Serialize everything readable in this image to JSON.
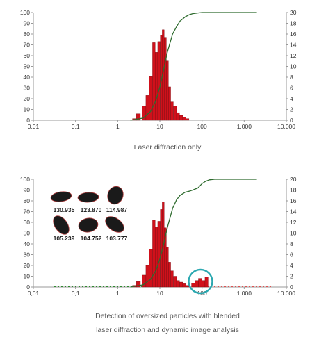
{
  "colors": {
    "bar": "#d0111b",
    "bar_edge": "#7a0a10",
    "curve": "#2e6b2e",
    "axis": "#999999",
    "circle": "#2aa8b0"
  },
  "captions": {
    "top": "Laser diffraction only",
    "bottom_line1": "Detection of oversized particles with blended",
    "bottom_line2": "laser diffraction and dynamic image analysis"
  },
  "chart_data": [
    {
      "type": "bar",
      "xscale": "log",
      "xlim": [
        0.01,
        10000
      ],
      "ylim_left": [
        0,
        100
      ],
      "ylim_right": [
        0,
        20
      ],
      "x_ticks": [
        "0,01",
        "0,1",
        "1",
        "10",
        "100",
        "1.000",
        "10.000"
      ],
      "y_ticks_left": [
        "0",
        "10",
        "20",
        "30",
        "40",
        "50",
        "60",
        "70",
        "80",
        "90",
        "100"
      ],
      "y_ticks_right": [
        "0",
        "2",
        "4",
        "6",
        "8",
        "10",
        "12",
        "14",
        "16",
        "18",
        "20"
      ],
      "bars": {
        "x": [
          2.5,
          3.1,
          4.2,
          5.1,
          6.1,
          7.2,
          8.3,
          9.5,
          10.8,
          12.0,
          13.5,
          15.1,
          17.0,
          19.5,
          23.0,
          27.0,
          32.0,
          38.0,
          45.0
        ],
        "y": [
          0.3,
          1.2,
          2.6,
          4.6,
          8.1,
          14.4,
          12.6,
          14.6,
          15.8,
          16.8,
          15.4,
          11.0,
          6.2,
          3.4,
          2.6,
          1.4,
          0.9,
          0.6,
          0.3
        ]
      },
      "cumulative": {
        "x": [
          2,
          4,
          6,
          8,
          10,
          12,
          15,
          20,
          25,
          30,
          40,
          50,
          60,
          80,
          100,
          150,
          200,
          300,
          500,
          1000,
          2000
        ],
        "y": [
          0,
          2,
          8,
          18,
          31,
          45,
          63,
          80,
          87,
          92,
          96,
          98,
          99,
          99.6,
          100,
          100,
          100,
          100,
          100,
          100,
          100
        ]
      }
    },
    {
      "type": "bar",
      "xscale": "log",
      "xlim": [
        0.01,
        10000
      ],
      "ylim_left": [
        0,
        100
      ],
      "ylim_right": [
        0,
        20
      ],
      "x_ticks": [
        "0,01",
        "0,1",
        "1",
        "10",
        "100",
        "1.000",
        "10.000"
      ],
      "y_ticks_left": [
        "0",
        "10",
        "20",
        "30",
        "40",
        "50",
        "60",
        "70",
        "80",
        "90",
        "100"
      ],
      "y_ticks_right": [
        "0",
        "2",
        "4",
        "6",
        "8",
        "10",
        "12",
        "14",
        "16",
        "18",
        "20"
      ],
      "bars": {
        "x": [
          2.5,
          3.1,
          4.2,
          5.1,
          6.1,
          7.2,
          8.3,
          9.5,
          10.8,
          12.0,
          13.5,
          15.1,
          17.0,
          19.5,
          23.0,
          27.0,
          32.0,
          38.0,
          45.0,
          62.0,
          75.0,
          90.0,
          108.0,
          128.0
        ],
        "y": [
          0.3,
          1.0,
          2.2,
          4.0,
          7.0,
          12.4,
          11.2,
          12.2,
          14.4,
          15.8,
          11.0,
          7.4,
          4.6,
          3.0,
          2.0,
          1.2,
          0.9,
          0.6,
          0.3,
          0.7,
          1.2,
          1.6,
          1.2,
          1.9
        ]
      },
      "cumulative": {
        "x": [
          2,
          4,
          6,
          8,
          10,
          12,
          15,
          20,
          25,
          30,
          40,
          50,
          60,
          80,
          100,
          120,
          150,
          200,
          500,
          1000,
          2000
        ],
        "y": [
          0,
          2,
          7,
          15,
          26,
          38,
          55,
          73,
          81,
          85,
          88,
          89,
          90,
          92,
          96,
          98,
          99.5,
          100,
          100,
          100,
          100
        ]
      },
      "particle_labels": [
        "130.935",
        "123.870",
        "114.987",
        "105.239",
        "104.752",
        "103.777"
      ]
    }
  ]
}
